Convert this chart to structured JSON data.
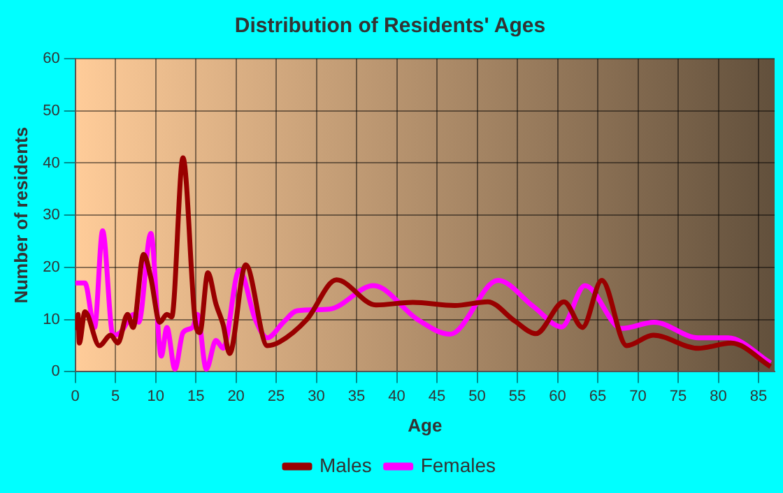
{
  "chart_data": {
    "type": "line",
    "title": "Distribution of Residents' Ages",
    "xlabel": "Age",
    "ylabel": "Number of residents",
    "xlim": [
      0,
      87
    ],
    "xticks": [
      0,
      5,
      10,
      15,
      20,
      25,
      30,
      35,
      40,
      45,
      50,
      55,
      60,
      65,
      70,
      75,
      80,
      85
    ],
    "ylim": [
      0,
      60
    ],
    "yticks": [
      0,
      10,
      20,
      30,
      40,
      50,
      60
    ],
    "grid": true,
    "legend": "bottom",
    "marker": "none",
    "line_style": "solid",
    "series": [
      {
        "name": "Males",
        "color": "#990000",
        "x": [
          0,
          0.35,
          0.5,
          1.2,
          3,
          4.4,
          5.3,
          6.5,
          7.2,
          8.5,
          9.4,
          10.5,
          11.4,
          12,
          13.4,
          14.9,
          15.5,
          16.5,
          17.5,
          18.4,
          19.2,
          21.2,
          23.9,
          25.4,
          28.8,
          32.5,
          37.4,
          42,
          47.2,
          51.3,
          54.7,
          57.3,
          60.8,
          63.1,
          65.5,
          68.6,
          71.9,
          77.5,
          81.6,
          86.5
        ],
        "values": [
          8,
          11,
          5.5,
          11.5,
          5,
          7,
          5.5,
          11,
          8.5,
          22.5,
          18,
          9.5,
          11,
          10.5,
          41,
          10,
          7.5,
          19,
          13,
          9,
          3.5,
          20.5,
          5,
          5.7,
          10,
          17.6,
          12.8,
          13.3,
          12.7,
          13.4,
          9.7,
          7.3,
          13.4,
          8.5,
          17.5,
          5,
          7,
          4.5,
          5.5,
          1
        ]
      },
      {
        "name": "Females",
        "color": "#ff00ff",
        "x": [
          0,
          1.2,
          2.4,
          3.4,
          4.7,
          5.6,
          7.3,
          7.9,
          9.4,
          10.7,
          11.4,
          12.4,
          13.4,
          14.6,
          15.2,
          16.3,
          17.5,
          18.4,
          20.4,
          22.4,
          23.9,
          25.9,
          27.6,
          31.6,
          37.1,
          42.6,
          46.6,
          52.6,
          57,
          60.5,
          63.4,
          68,
          72,
          77.5,
          81.2,
          86.5
        ],
        "values": [
          17,
          17,
          8.5,
          27,
          7,
          7.5,
          11,
          9.5,
          26.5,
          3,
          8.5,
          0.5,
          7.5,
          8.5,
          11,
          0.5,
          6,
          4.5,
          19.5,
          10,
          6.5,
          9.5,
          11.7,
          12,
          16.5,
          10,
          7.2,
          17.5,
          12.5,
          8.6,
          16.5,
          8.3,
          9.5,
          6.5,
          6.5,
          1.7
        ]
      }
    ]
  }
}
